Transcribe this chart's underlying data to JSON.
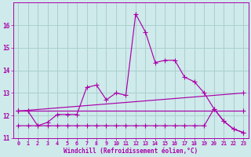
{
  "background_color": "#ceeaea",
  "grid_color": "#aacfcf",
  "line_color": "#aa00aa",
  "xlabel": "Windchill (Refroidissement éolien,°C)",
  "xlim": [
    -0.5,
    23.5
  ],
  "ylim": [
    11.0,
    17.0
  ],
  "yticks": [
    11,
    12,
    13,
    14,
    15,
    16
  ],
  "xticks": [
    0,
    1,
    2,
    3,
    4,
    5,
    6,
    7,
    8,
    9,
    10,
    11,
    12,
    13,
    14,
    15,
    16,
    17,
    18,
    19,
    20,
    21,
    22,
    23
  ],
  "series1_x": [
    0,
    1,
    2,
    3,
    4,
    5,
    6,
    7,
    8,
    9,
    10,
    11,
    12,
    13,
    14,
    15,
    16,
    17,
    18,
    19,
    20,
    21,
    22,
    23
  ],
  "series1_y": [
    12.2,
    12.2,
    11.55,
    11.7,
    12.05,
    12.05,
    12.05,
    13.25,
    13.35,
    12.7,
    13.0,
    12.9,
    16.5,
    15.7,
    14.35,
    14.45,
    14.45,
    13.7,
    13.5,
    13.0,
    12.3,
    11.75,
    11.4,
    11.25
  ],
  "series2_x": [
    0,
    1,
    23
  ],
  "series2_y": [
    12.2,
    12.2,
    12.2
  ],
  "series3_x": [
    0,
    23
  ],
  "series3_y": [
    12.2,
    13.0
  ],
  "series4_x": [
    0,
    1,
    2,
    3,
    4,
    5,
    6,
    7,
    8,
    9,
    10,
    11,
    12,
    13,
    14,
    15,
    16,
    17,
    18,
    19,
    20,
    21,
    22,
    23
  ],
  "series4_y": [
    11.55,
    11.55,
    11.55,
    11.55,
    11.55,
    11.55,
    11.55,
    11.55,
    11.55,
    11.55,
    11.55,
    11.55,
    11.55,
    11.55,
    11.55,
    11.55,
    11.55,
    11.55,
    11.55,
    11.55,
    12.3,
    11.75,
    11.4,
    11.25
  ],
  "marker": "+",
  "markersize": 4.0,
  "linewidth": 0.85
}
